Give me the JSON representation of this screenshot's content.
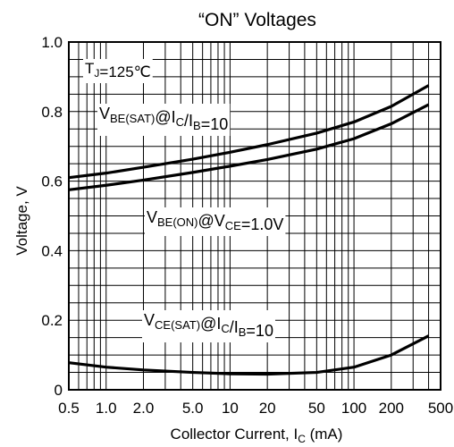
{
  "chart_data": {
    "type": "line",
    "title": "“ON” Voltages",
    "xlabel": {
      "main": "Collector Current, I",
      "sub": "C",
      "unit": " (mA)"
    },
    "ylabel": "Voltage, V",
    "xscale": "log",
    "xlim": [
      0.5,
      500
    ],
    "ylim": [
      0,
      1.0
    ],
    "xticks": [
      0.5,
      1.0,
      2.0,
      5.0,
      10,
      20,
      50,
      100,
      200,
      500
    ],
    "xtick_labels": [
      "0.5",
      "1.0",
      "2.0",
      "5.0",
      "10",
      "20",
      "50",
      "100",
      "200",
      "500"
    ],
    "yticks": [
      0,
      0.2,
      0.4,
      0.6,
      0.8,
      1.0
    ],
    "ytick_labels": [
      "0",
      "0.2",
      "0.4",
      "0.6",
      "0.8",
      "1.0"
    ],
    "grid": true,
    "temperature_label": {
      "pre": "T",
      "sub": "J",
      "post": "=125℃"
    },
    "series": [
      {
        "name": "VBE(SAT)@IC/IB=10",
        "label_parts": [
          [
            "V",
            ""
          ],
          [
            "BE(SAT)",
            "sub"
          ],
          [
            "@I",
            ""
          ],
          [
            "C",
            "sub"
          ],
          [
            "/I",
            ""
          ],
          [
            "B",
            "sub"
          ],
          [
            "=10",
            ""
          ]
        ],
        "x": [
          0.5,
          1,
          2,
          5,
          10,
          20,
          50,
          100,
          200,
          400
        ],
        "y": [
          0.61,
          0.623,
          0.64,
          0.663,
          0.683,
          0.705,
          0.738,
          0.77,
          0.815,
          0.875
        ]
      },
      {
        "name": "VBE(ON)@VCE=1.0V",
        "label_parts": [
          [
            "V",
            ""
          ],
          [
            "BE(ON)",
            "sub"
          ],
          [
            "@V",
            ""
          ],
          [
            "CE",
            "sub"
          ],
          [
            "=1.0V",
            ""
          ]
        ],
        "x": [
          0.5,
          1,
          2,
          5,
          10,
          20,
          50,
          100,
          200,
          400
        ],
        "y": [
          0.575,
          0.588,
          0.603,
          0.625,
          0.643,
          0.662,
          0.692,
          0.722,
          0.765,
          0.82
        ]
      },
      {
        "name": "VCE(SAT)@IC/IB=10",
        "label_parts": [
          [
            "V",
            ""
          ],
          [
            "CE(SAT)",
            "sub"
          ],
          [
            "@I",
            ""
          ],
          [
            "C",
            "sub"
          ],
          [
            "/I",
            ""
          ],
          [
            "B",
            "sub"
          ],
          [
            "=10",
            ""
          ]
        ],
        "x": [
          0.5,
          1,
          2,
          5,
          10,
          20,
          50,
          100,
          200,
          400
        ],
        "y": [
          0.078,
          0.065,
          0.057,
          0.05,
          0.046,
          0.045,
          0.05,
          0.065,
          0.1,
          0.155
        ]
      }
    ]
  }
}
